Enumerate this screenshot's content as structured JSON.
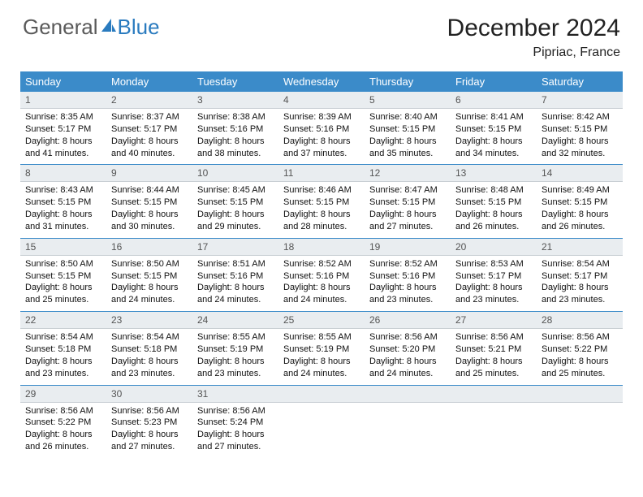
{
  "logo": {
    "text1": "General",
    "text2": "Blue"
  },
  "title": "December 2024",
  "location": "Pipriac, France",
  "colors": {
    "header_bg": "#3b8bc9",
    "header_text": "#ffffff",
    "daynum_bg": "#e9edf0",
    "border": "#3b8bc9"
  },
  "dayNames": [
    "Sunday",
    "Monday",
    "Tuesday",
    "Wednesday",
    "Thursday",
    "Friday",
    "Saturday"
  ],
  "weeks": [
    [
      {
        "n": "1",
        "sr": "8:35 AM",
        "ss": "5:17 PM",
        "dl": "8 hours and 41 minutes."
      },
      {
        "n": "2",
        "sr": "8:37 AM",
        "ss": "5:17 PM",
        "dl": "8 hours and 40 minutes."
      },
      {
        "n": "3",
        "sr": "8:38 AM",
        "ss": "5:16 PM",
        "dl": "8 hours and 38 minutes."
      },
      {
        "n": "4",
        "sr": "8:39 AM",
        "ss": "5:16 PM",
        "dl": "8 hours and 37 minutes."
      },
      {
        "n": "5",
        "sr": "8:40 AM",
        "ss": "5:15 PM",
        "dl": "8 hours and 35 minutes."
      },
      {
        "n": "6",
        "sr": "8:41 AM",
        "ss": "5:15 PM",
        "dl": "8 hours and 34 minutes."
      },
      {
        "n": "7",
        "sr": "8:42 AM",
        "ss": "5:15 PM",
        "dl": "8 hours and 32 minutes."
      }
    ],
    [
      {
        "n": "8",
        "sr": "8:43 AM",
        "ss": "5:15 PM",
        "dl": "8 hours and 31 minutes."
      },
      {
        "n": "9",
        "sr": "8:44 AM",
        "ss": "5:15 PM",
        "dl": "8 hours and 30 minutes."
      },
      {
        "n": "10",
        "sr": "8:45 AM",
        "ss": "5:15 PM",
        "dl": "8 hours and 29 minutes."
      },
      {
        "n": "11",
        "sr": "8:46 AM",
        "ss": "5:15 PM",
        "dl": "8 hours and 28 minutes."
      },
      {
        "n": "12",
        "sr": "8:47 AM",
        "ss": "5:15 PM",
        "dl": "8 hours and 27 minutes."
      },
      {
        "n": "13",
        "sr": "8:48 AM",
        "ss": "5:15 PM",
        "dl": "8 hours and 26 minutes."
      },
      {
        "n": "14",
        "sr": "8:49 AM",
        "ss": "5:15 PM",
        "dl": "8 hours and 26 minutes."
      }
    ],
    [
      {
        "n": "15",
        "sr": "8:50 AM",
        "ss": "5:15 PM",
        "dl": "8 hours and 25 minutes."
      },
      {
        "n": "16",
        "sr": "8:50 AM",
        "ss": "5:15 PM",
        "dl": "8 hours and 24 minutes."
      },
      {
        "n": "17",
        "sr": "8:51 AM",
        "ss": "5:16 PM",
        "dl": "8 hours and 24 minutes."
      },
      {
        "n": "18",
        "sr": "8:52 AM",
        "ss": "5:16 PM",
        "dl": "8 hours and 24 minutes."
      },
      {
        "n": "19",
        "sr": "8:52 AM",
        "ss": "5:16 PM",
        "dl": "8 hours and 23 minutes."
      },
      {
        "n": "20",
        "sr": "8:53 AM",
        "ss": "5:17 PM",
        "dl": "8 hours and 23 minutes."
      },
      {
        "n": "21",
        "sr": "8:54 AM",
        "ss": "5:17 PM",
        "dl": "8 hours and 23 minutes."
      }
    ],
    [
      {
        "n": "22",
        "sr": "8:54 AM",
        "ss": "5:18 PM",
        "dl": "8 hours and 23 minutes."
      },
      {
        "n": "23",
        "sr": "8:54 AM",
        "ss": "5:18 PM",
        "dl": "8 hours and 23 minutes."
      },
      {
        "n": "24",
        "sr": "8:55 AM",
        "ss": "5:19 PM",
        "dl": "8 hours and 23 minutes."
      },
      {
        "n": "25",
        "sr": "8:55 AM",
        "ss": "5:19 PM",
        "dl": "8 hours and 24 minutes."
      },
      {
        "n": "26",
        "sr": "8:56 AM",
        "ss": "5:20 PM",
        "dl": "8 hours and 24 minutes."
      },
      {
        "n": "27",
        "sr": "8:56 AM",
        "ss": "5:21 PM",
        "dl": "8 hours and 25 minutes."
      },
      {
        "n": "28",
        "sr": "8:56 AM",
        "ss": "5:22 PM",
        "dl": "8 hours and 25 minutes."
      }
    ],
    [
      {
        "n": "29",
        "sr": "8:56 AM",
        "ss": "5:22 PM",
        "dl": "8 hours and 26 minutes."
      },
      {
        "n": "30",
        "sr": "8:56 AM",
        "ss": "5:23 PM",
        "dl": "8 hours and 27 minutes."
      },
      {
        "n": "31",
        "sr": "8:56 AM",
        "ss": "5:24 PM",
        "dl": "8 hours and 27 minutes."
      },
      null,
      null,
      null,
      null
    ]
  ],
  "labels": {
    "sunrise": "Sunrise:",
    "sunset": "Sunset:",
    "daylight": "Daylight:"
  }
}
